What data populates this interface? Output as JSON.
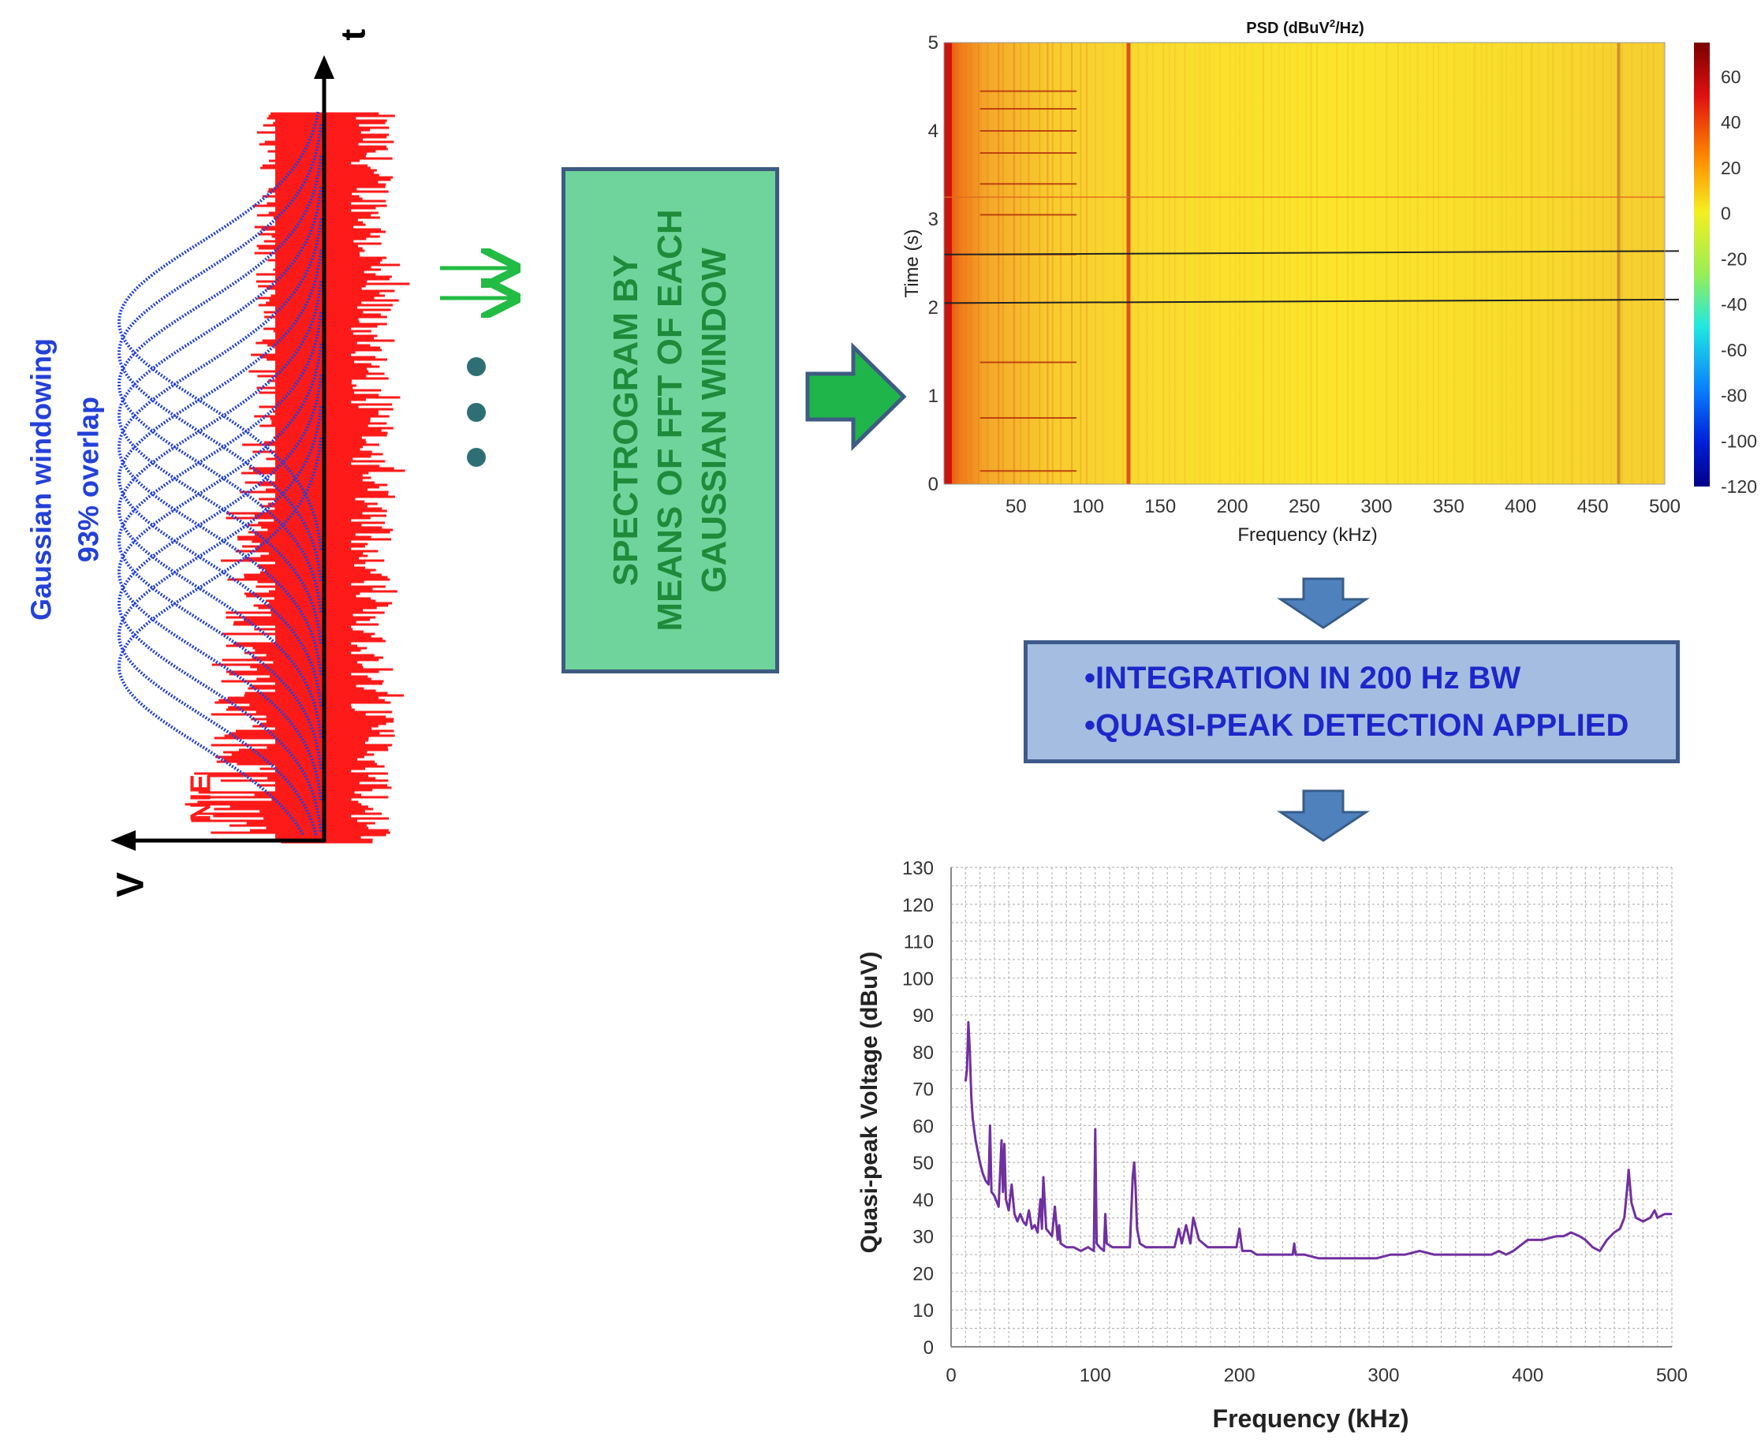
{
  "left_panel": {
    "window_label_line1": "Gaussian windowing",
    "window_label_line2": "93% overlap",
    "signal_label": "NIE",
    "axis_t": "t",
    "axis_v": "V",
    "window_count": 12,
    "colors": {
      "windows": "#2340d8",
      "signal": "#ff1a1a",
      "axis": "#000000"
    }
  },
  "process_box": {
    "lines": [
      "SPECTROGRAM BY",
      "MEANS OF FFT OF EACH",
      "GAUSSIAN WINDOW"
    ],
    "fill": "#6fd49c",
    "text_color": "#1e8b3a"
  },
  "integration_box": {
    "lines": [
      "•INTEGRATION IN 200 Hz BW",
      "•QUASI-PEAK DETECTION APPLIED"
    ],
    "fill": "#a5bde0"
  },
  "chart_data": [
    {
      "type": "heatmap",
      "title": "PSD (dBuV²/Hz)",
      "title_main": "PSD (dBuV",
      "title_sup": "2",
      "title_tail": "/Hz)",
      "xlabel": "Frequency (kHz)",
      "ylabel": "Time (s)",
      "xlim": [
        0,
        500
      ],
      "ylim": [
        0,
        5
      ],
      "xticks": [
        50,
        100,
        150,
        200,
        250,
        300,
        350,
        400,
        450,
        500
      ],
      "yticks": [
        0,
        1,
        2,
        3,
        4,
        5
      ],
      "colorbar": {
        "min": -120,
        "max": 75,
        "ticks": [
          60,
          40,
          20,
          0,
          -20,
          -40,
          -60,
          -80,
          -100,
          -120
        ]
      },
      "strong_lines_khz": [
        128,
        468
      ],
      "horizontal_lines_s": [
        2.05,
        2.6
      ]
    },
    {
      "type": "line",
      "xlabel": "Frequency (kHz)",
      "ylabel": "Quasi-peak Voltage (dBuV)",
      "xlim": [
        0,
        500
      ],
      "ylim": [
        0,
        130
      ],
      "xticks": [
        0,
        100,
        200,
        300,
        400,
        500
      ],
      "yticks": [
        0,
        10,
        20,
        30,
        40,
        50,
        60,
        70,
        80,
        90,
        100,
        110,
        120,
        130
      ],
      "line_color": "#7030a0",
      "series": [
        {
          "name": "Quasi-peak",
          "x": [
            10,
            11,
            12,
            13,
            14,
            15,
            17,
            20,
            22,
            24,
            26,
            27,
            28,
            30,
            33,
            35,
            36,
            37,
            38,
            40,
            42,
            44,
            46,
            48,
            50,
            52,
            54,
            56,
            58,
            60,
            62,
            63,
            64,
            66,
            70,
            72,
            74,
            75,
            76,
            80,
            85,
            90,
            95,
            99,
            100,
            101,
            103,
            106,
            107,
            108,
            112,
            118,
            124,
            126,
            127,
            128,
            129,
            131,
            135,
            140,
            148,
            155,
            158,
            160,
            163,
            166,
            168,
            172,
            178,
            185,
            192,
            198,
            200,
            202,
            208,
            212,
            220,
            230,
            237,
            238,
            239,
            245,
            255,
            265,
            275,
            285,
            295,
            305,
            315,
            325,
            335,
            345,
            355,
            365,
            375,
            380,
            385,
            390,
            400,
            410,
            420,
            425,
            430,
            436,
            440,
            445,
            450,
            455,
            460,
            464,
            467,
            469,
            470,
            472,
            475,
            480,
            485,
            488,
            490,
            495,
            500
          ],
          "values": [
            72,
            75,
            88,
            80,
            68,
            62,
            56,
            50,
            47,
            45,
            44,
            60,
            42,
            41,
            38,
            56,
            42,
            55,
            40,
            37,
            44,
            36,
            34,
            36,
            34,
            33,
            37,
            32,
            33,
            31,
            40,
            32,
            46,
            32,
            30,
            38,
            29,
            33,
            28,
            27,
            27,
            26,
            27,
            26,
            59,
            28,
            27,
            26,
            36,
            28,
            27,
            27,
            27,
            46,
            50,
            43,
            32,
            28,
            27,
            27,
            27,
            27,
            32,
            28,
            33,
            28,
            35,
            29,
            27,
            27,
            27,
            27,
            32,
            26,
            26,
            25,
            25,
            25,
            25,
            28,
            25,
            25,
            24,
            24,
            24,
            24,
            24,
            25,
            25,
            26,
            25,
            25,
            25,
            25,
            25,
            26,
            25,
            26,
            29,
            29,
            30,
            30,
            31,
            30,
            29,
            27,
            26,
            29,
            31,
            32,
            35,
            43,
            48,
            39,
            35,
            34,
            35,
            37,
            35,
            36,
            36
          ]
        }
      ]
    }
  ]
}
